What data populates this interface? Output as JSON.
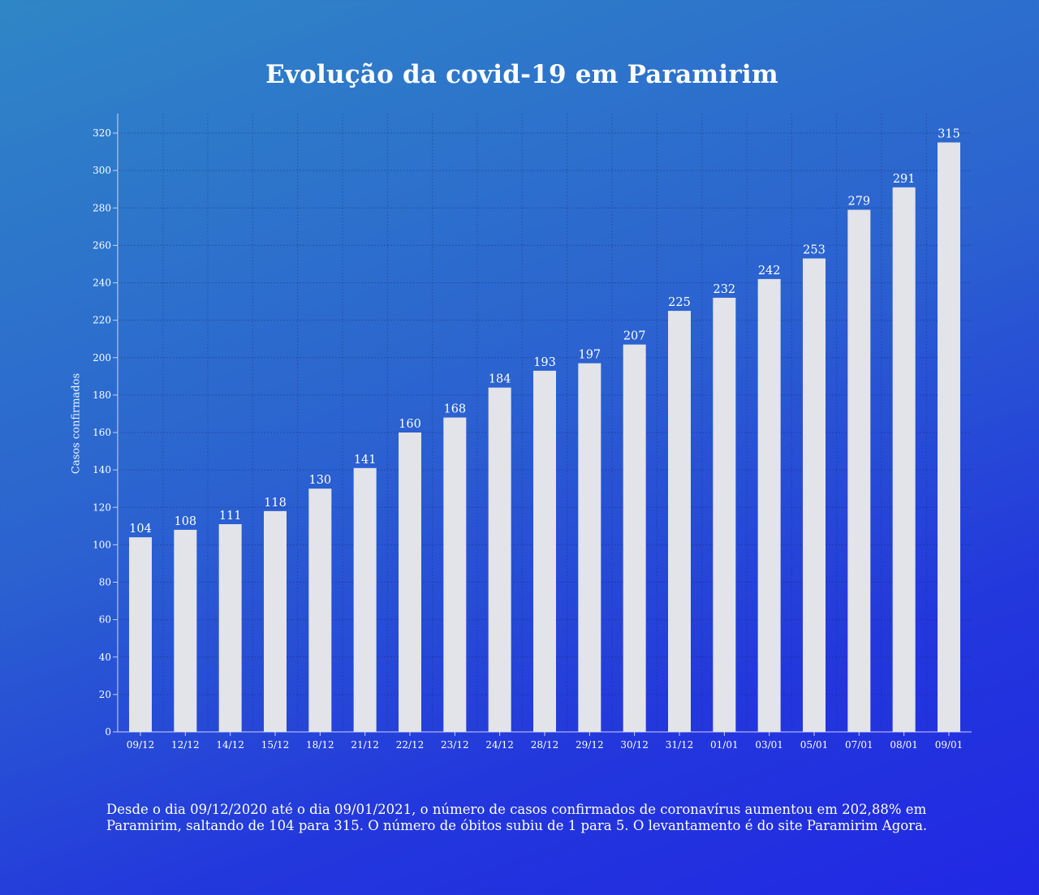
{
  "title": "Evolução da covid-19 em Paramirim",
  "chart_data": {
    "type": "bar",
    "title": "Evolução da covid-19 em Paramirim",
    "xlabel": "",
    "ylabel": "Casos confirmados",
    "categories": [
      "09/12",
      "12/12",
      "14/12",
      "15/12",
      "18/12",
      "21/12",
      "22/12",
      "23/12",
      "24/12",
      "28/12",
      "29/12",
      "30/12",
      "31/12",
      "01/01",
      "03/01",
      "05/01",
      "07/01",
      "08/01",
      "09/01"
    ],
    "values": [
      104,
      108,
      111,
      118,
      130,
      141,
      160,
      168,
      184,
      193,
      197,
      207,
      225,
      232,
      242,
      253,
      279,
      291,
      315
    ],
    "ylim": [
      0,
      320
    ],
    "yticks": [
      0,
      20,
      40,
      60,
      80,
      100,
      120,
      140,
      160,
      180,
      200,
      220,
      240,
      260,
      280,
      300,
      320
    ],
    "grid": true,
    "data_labels": true,
    "bar_color": "#e2e4ea",
    "text_color": "#ffffff"
  },
  "caption": "Desde o dia 09/12/2020 até o dia 09/01/2021, o número de casos confirmados de coronavírus aumentou em 202,88% em Paramirim, saltando de 104 para 315. O número de óbitos subiu de 1 para 5. O levantamento é do site Paramirim Agora."
}
